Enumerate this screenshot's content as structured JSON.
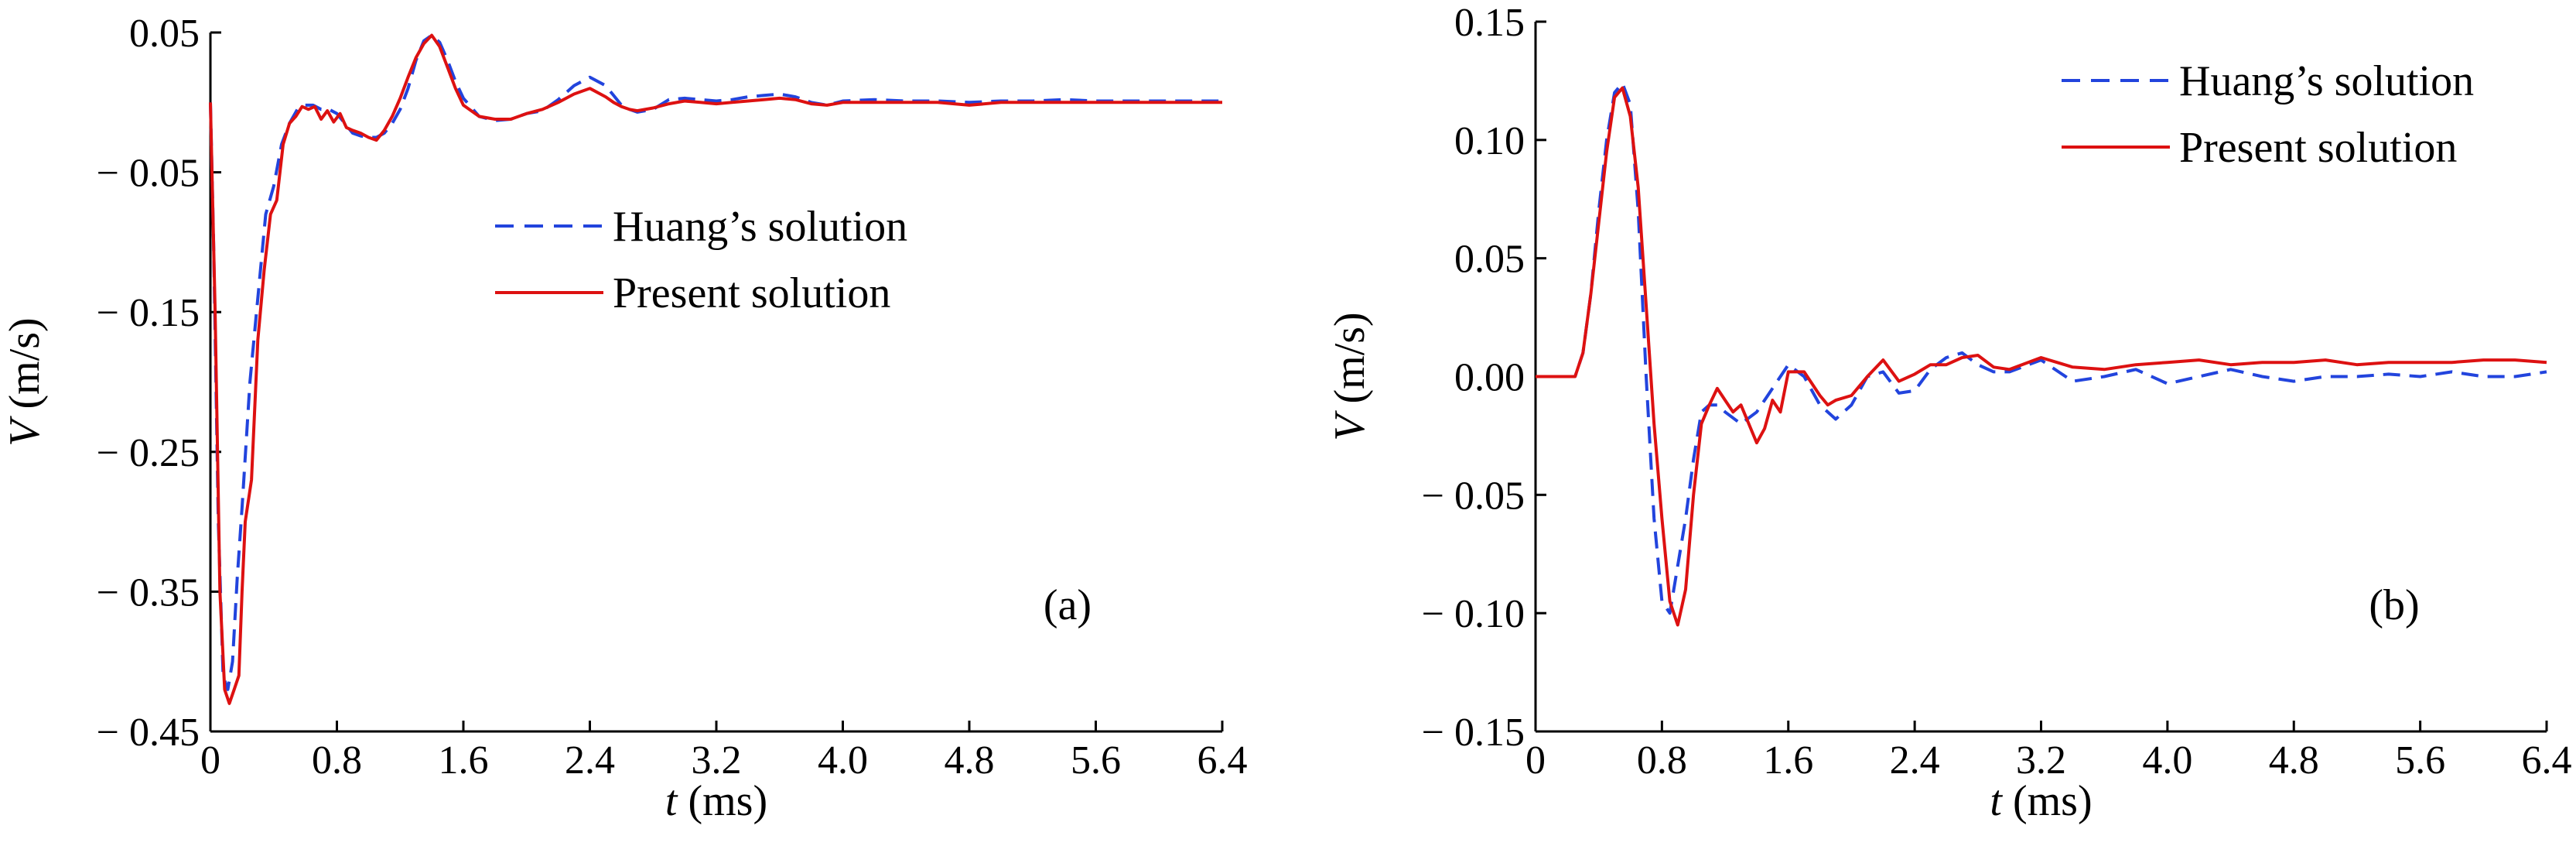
{
  "chart_data": [
    {
      "type": "line",
      "panel_label": "(a)",
      "xlabel": {
        "var": "t",
        "unit": " (ms)"
      },
      "ylabel": {
        "var": "V",
        "unit": " (m/s)"
      },
      "xlim": [
        0,
        6.4
      ],
      "ylim": [
        -0.45,
        0.05
      ],
      "x_ticks": [
        0,
        0.8,
        1.6,
        2.4,
        3.2,
        4.0,
        4.8,
        5.6,
        6.4
      ],
      "x_tick_labels": [
        "0",
        "0.8",
        "1.6",
        "2.4",
        "3.2",
        "4.0",
        "4.8",
        "5.6",
        "6.4"
      ],
      "y_ticks": [
        0.05,
        -0.05,
        -0.15,
        -0.25,
        -0.35,
        -0.45
      ],
      "y_tick_labels": [
        "0.05",
        "− 0.05",
        "− 0.15",
        "− 0.25",
        "− 0.35",
        "− 0.45"
      ],
      "legend_position": "center",
      "series": [
        {
          "name": "Huang’s solution",
          "color": "#2244dd",
          "style": "dashed",
          "x": [
            0,
            0.02,
            0.05,
            0.08,
            0.11,
            0.14,
            0.17,
            0.2,
            0.25,
            0.3,
            0.35,
            0.4,
            0.45,
            0.5,
            0.55,
            0.6,
            0.65,
            0.7,
            0.75,
            0.8,
            0.85,
            0.9,
            0.95,
            1.0,
            1.05,
            1.1,
            1.15,
            1.2,
            1.25,
            1.3,
            1.35,
            1.4,
            1.45,
            1.5,
            1.55,
            1.6,
            1.7,
            1.8,
            1.9,
            2.0,
            2.1,
            2.2,
            2.3,
            2.4,
            2.5,
            2.55,
            2.6,
            2.65,
            2.7,
            2.8,
            2.9,
            3.0,
            3.1,
            3.2,
            3.3,
            3.4,
            3.5,
            3.6,
            3.7,
            3.8,
            3.9,
            4.0,
            4.2,
            4.4,
            4.6,
            4.8,
            5.0,
            5.2,
            5.4,
            5.6,
            5.8,
            6.0,
            6.2,
            6.4
          ],
          "y": [
            0,
            -0.1,
            -0.3,
            -0.41,
            -0.42,
            -0.4,
            -0.34,
            -0.29,
            -0.2,
            -0.14,
            -0.08,
            -0.06,
            -0.03,
            -0.015,
            -0.005,
            -0.002,
            -0.002,
            -0.005,
            -0.005,
            -0.008,
            -0.015,
            -0.022,
            -0.024,
            -0.025,
            -0.025,
            -0.022,
            -0.015,
            -0.005,
            0.01,
            0.03,
            0.044,
            0.048,
            0.043,
            0.03,
            0.015,
            0.003,
            -0.01,
            -0.013,
            -0.012,
            -0.008,
            -0.006,
            0.002,
            0.012,
            0.018,
            0.012,
            0.005,
            -0.002,
            -0.005,
            -0.007,
            -0.005,
            0.002,
            0.003,
            0.002,
            0.001,
            0.002,
            0.004,
            0.005,
            0.006,
            0.004,
            0.0,
            -0.002,
            0.001,
            0.002,
            0.001,
            0.001,
            0.0,
            0.001,
            0.001,
            0.002,
            0.001,
            0.001,
            0.001,
            0.001,
            0.001
          ]
        },
        {
          "name": "Present solution",
          "color": "#dd1111",
          "style": "solid",
          "x": [
            0,
            0.03,
            0.06,
            0.09,
            0.12,
            0.15,
            0.18,
            0.2,
            0.22,
            0.26,
            0.3,
            0.34,
            0.38,
            0.42,
            0.46,
            0.5,
            0.54,
            0.58,
            0.62,
            0.66,
            0.7,
            0.74,
            0.78,
            0.82,
            0.86,
            0.9,
            0.95,
            1.0,
            1.05,
            1.1,
            1.15,
            1.2,
            1.25,
            1.3,
            1.35,
            1.4,
            1.45,
            1.5,
            1.55,
            1.6,
            1.7,
            1.8,
            1.9,
            2.0,
            2.1,
            2.2,
            2.3,
            2.4,
            2.5,
            2.55,
            2.6,
            2.65,
            2.7,
            2.8,
            2.9,
            3.0,
            3.1,
            3.2,
            3.3,
            3.4,
            3.5,
            3.6,
            3.7,
            3.8,
            3.9,
            4.0,
            4.2,
            4.4,
            4.6,
            4.8,
            5.0,
            5.2,
            5.4,
            5.6,
            5.8,
            6.0,
            6.2,
            6.4
          ],
          "y": [
            0,
            -0.15,
            -0.35,
            -0.42,
            -0.43,
            -0.42,
            -0.41,
            -0.35,
            -0.3,
            -0.27,
            -0.17,
            -0.12,
            -0.08,
            -0.07,
            -0.03,
            -0.015,
            -0.01,
            -0.003,
            -0.005,
            -0.003,
            -0.012,
            -0.006,
            -0.014,
            -0.008,
            -0.018,
            -0.02,
            -0.022,
            -0.025,
            -0.027,
            -0.02,
            -0.01,
            0.003,
            0.018,
            0.032,
            0.042,
            0.048,
            0.04,
            0.025,
            0.01,
            -0.002,
            -0.01,
            -0.012,
            -0.012,
            -0.008,
            -0.005,
            0.0,
            0.006,
            0.01,
            0.004,
            0.0,
            -0.003,
            -0.005,
            -0.006,
            -0.004,
            -0.001,
            0.001,
            0.0,
            -0.001,
            0.0,
            0.001,
            0.002,
            0.003,
            0.002,
            -0.001,
            -0.002,
            0.0,
            0.0,
            0.0,
            0.0,
            -0.002,
            0.0,
            0.0,
            0.0,
            0.0,
            0.0,
            0.0,
            0.0,
            0.0
          ]
        }
      ]
    },
    {
      "type": "line",
      "panel_label": "(b)",
      "xlabel": {
        "var": "t",
        "unit": " (ms)"
      },
      "ylabel": {
        "var": "V",
        "unit": " (m/s)"
      },
      "xlim": [
        0,
        6.4
      ],
      "ylim": [
        -0.15,
        0.15
      ],
      "x_ticks": [
        0,
        0.8,
        1.6,
        2.4,
        3.2,
        4.0,
        4.8,
        5.6,
        6.4
      ],
      "x_tick_labels": [
        "0",
        "0.8",
        "1.6",
        "2.4",
        "3.2",
        "4.0",
        "4.8",
        "5.6",
        "6.4"
      ],
      "y_ticks": [
        0.15,
        0.1,
        0.05,
        0.0,
        -0.05,
        -0.1,
        -0.15
      ],
      "y_tick_labels": [
        "0.15",
        "0.10",
        "0.05",
        "0.00",
        "− 0.05",
        "− 0.10",
        "− 0.15"
      ],
      "legend_position": "top-right",
      "series": [
        {
          "name": "Huang’s solution",
          "color": "#2244dd",
          "style": "dashed",
          "x": [
            0,
            0.25,
            0.3,
            0.35,
            0.4,
            0.45,
            0.5,
            0.55,
            0.6,
            0.65,
            0.7,
            0.75,
            0.8,
            0.85,
            0.9,
            0.95,
            1.0,
            1.05,
            1.1,
            1.15,
            1.2,
            1.3,
            1.4,
            1.5,
            1.6,
            1.7,
            1.8,
            1.9,
            2.0,
            2.1,
            2.2,
            2.3,
            2.4,
            2.5,
            2.6,
            2.7,
            2.8,
            2.9,
            3.0,
            3.2,
            3.4,
            3.6,
            3.8,
            4.0,
            4.2,
            4.4,
            4.6,
            4.8,
            5.0,
            5.2,
            5.4,
            5.6,
            5.8,
            6.0,
            6.2,
            6.4
          ],
          "y": [
            0,
            0,
            0.01,
            0.035,
            0.07,
            0.1,
            0.12,
            0.124,
            0.115,
            0.07,
            0.0,
            -0.06,
            -0.095,
            -0.1,
            -0.08,
            -0.06,
            -0.035,
            -0.015,
            -0.012,
            -0.012,
            -0.015,
            -0.02,
            -0.015,
            -0.005,
            0.005,
            0.0,
            -0.012,
            -0.018,
            -0.012,
            0.0,
            0.002,
            -0.007,
            -0.006,
            0.003,
            0.008,
            0.01,
            0.005,
            0.002,
            0.002,
            0.007,
            -0.002,
            0.0,
            0.003,
            -0.003,
            0.0,
            0.003,
            0.0,
            -0.002,
            0.0,
            0.0,
            0.001,
            0.0,
            0.002,
            0.0,
            0.0,
            0.002
          ]
        },
        {
          "name": "Present solution",
          "color": "#dd1111",
          "style": "solid",
          "x": [
            0,
            0.25,
            0.3,
            0.35,
            0.4,
            0.45,
            0.5,
            0.55,
            0.6,
            0.65,
            0.7,
            0.75,
            0.8,
            0.85,
            0.9,
            0.95,
            1.0,
            1.05,
            1.1,
            1.15,
            1.2,
            1.25,
            1.3,
            1.35,
            1.4,
            1.45,
            1.5,
            1.55,
            1.6,
            1.7,
            1.8,
            1.85,
            1.9,
            2.0,
            2.1,
            2.2,
            2.3,
            2.4,
            2.5,
            2.6,
            2.7,
            2.8,
            2.9,
            3.0,
            3.2,
            3.4,
            3.6,
            3.8,
            4.0,
            4.2,
            4.4,
            4.6,
            4.8,
            5.0,
            5.2,
            5.4,
            5.6,
            5.8,
            6.0,
            6.2,
            6.4
          ],
          "y": [
            0,
            0,
            0.01,
            0.035,
            0.065,
            0.095,
            0.118,
            0.122,
            0.11,
            0.08,
            0.03,
            -0.02,
            -0.06,
            -0.095,
            -0.105,
            -0.09,
            -0.05,
            -0.02,
            -0.012,
            -0.005,
            -0.01,
            -0.015,
            -0.012,
            -0.02,
            -0.028,
            -0.022,
            -0.01,
            -0.015,
            0.002,
            0.002,
            -0.008,
            -0.012,
            -0.01,
            -0.008,
            0.0,
            0.007,
            -0.002,
            0.001,
            0.005,
            0.005,
            0.008,
            0.009,
            0.004,
            0.003,
            0.008,
            0.004,
            0.003,
            0.005,
            0.006,
            0.007,
            0.005,
            0.006,
            0.006,
            0.007,
            0.005,
            0.006,
            0.006,
            0.006,
            0.007,
            0.007,
            0.006
          ]
        }
      ]
    }
  ]
}
